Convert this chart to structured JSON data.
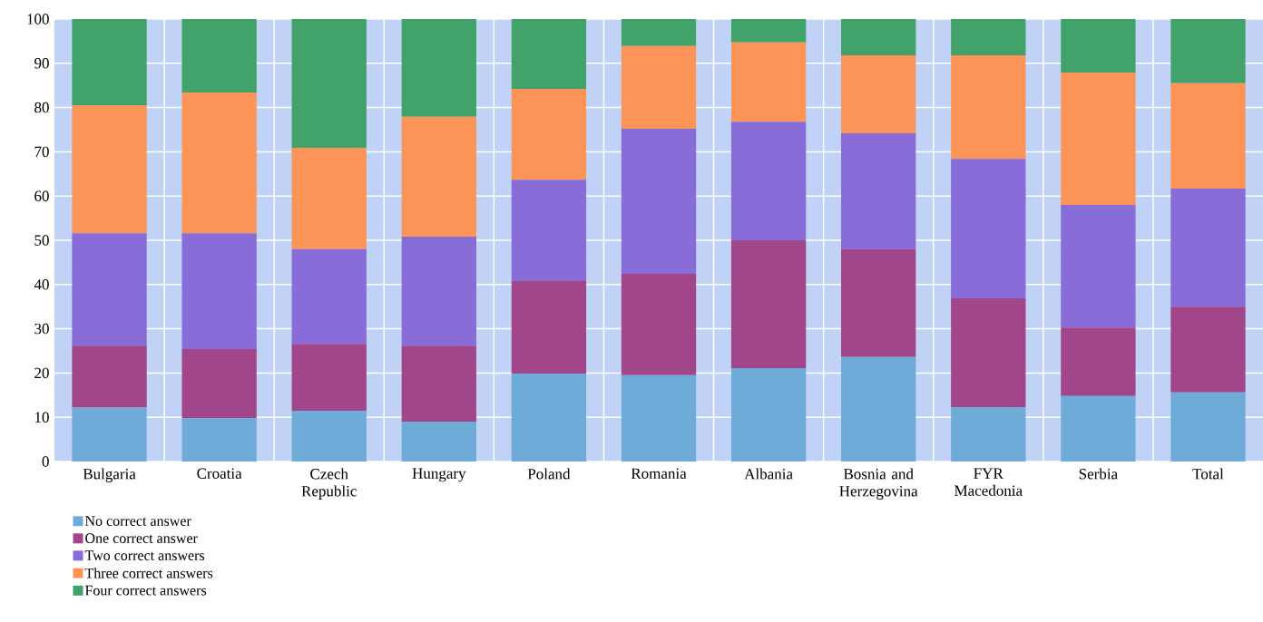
{
  "chart_data": {
    "type": "bar",
    "stacked": true,
    "categories": [
      "Bulgaria",
      "Croatia",
      "Czech Republic",
      "Hungary",
      "Poland",
      "Romania",
      "Albania",
      "Bosnia and Herzegovina",
      "FYR Macedonia",
      "Serbia",
      "Total"
    ],
    "series": [
      {
        "name": "No correct answer",
        "color": "#6fabd9",
        "values": [
          12.2,
          9.8,
          11.5,
          9.0,
          19.9,
          19.5,
          21.1,
          23.6,
          12.3,
          14.8,
          15.6
        ]
      },
      {
        "name": "One correct answer",
        "color": "#a2468b",
        "values": [
          14.0,
          15.6,
          15.1,
          17.2,
          20.9,
          22.9,
          28.9,
          24.4,
          24.6,
          15.5,
          19.4
        ]
      },
      {
        "name": "Two correct answers",
        "color": "#886cd8",
        "values": [
          25.4,
          26.2,
          21.4,
          24.6,
          22.9,
          32.8,
          26.8,
          26.2,
          31.5,
          27.7,
          26.7
        ]
      },
      {
        "name": "Three correct answers",
        "color": "#fd9457",
        "values": [
          28.9,
          31.8,
          22.9,
          27.1,
          20.5,
          18.7,
          17.9,
          17.6,
          23.4,
          29.9,
          23.8
        ]
      },
      {
        "name": "Four correct answers",
        "color": "#42a36a",
        "values": [
          19.5,
          16.6,
          29.1,
          22.1,
          15.8,
          6.1,
          5.3,
          8.2,
          8.2,
          12.1,
          14.5
        ]
      }
    ],
    "ylim": [
      0,
      100
    ],
    "yticks": [
      0,
      10,
      20,
      30,
      40,
      50,
      60,
      70,
      80,
      90,
      100
    ],
    "grid": true,
    "legend": "bottom left"
  }
}
